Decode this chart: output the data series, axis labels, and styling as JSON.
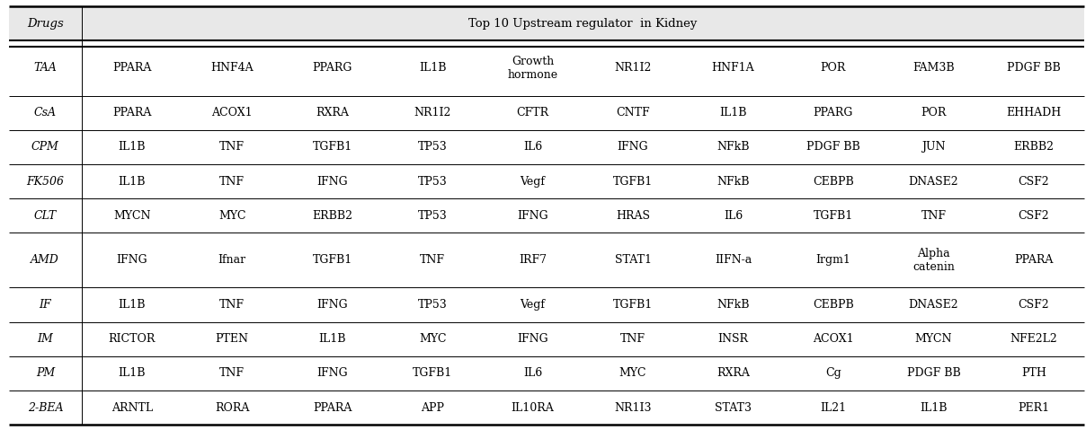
{
  "title": "Top 10 Upstream regulator  in Kidney",
  "col_header": "Drugs",
  "rows": [
    {
      "drug": "TAA",
      "regulators": [
        "PPARA",
        "HNF4A",
        "PPARG",
        "IL1B",
        "Growth\nhormone",
        "NR1I2",
        "HNF1A",
        "POR",
        "FAM3B",
        "PDGF BB"
      ]
    },
    {
      "drug": "CsA",
      "regulators": [
        "PPARA",
        "ACOX1",
        "RXRA",
        "NR1I2",
        "CFTR",
        "CNTF",
        "IL1B",
        "PPARG",
        "POR",
        "EHHADH"
      ]
    },
    {
      "drug": "CPM",
      "regulators": [
        "IL1B",
        "TNF",
        "TGFB1",
        "TP53",
        "IL6",
        "IFNG",
        "NFkB",
        "PDGF BB",
        "JUN",
        "ERBB2"
      ]
    },
    {
      "drug": "FK506",
      "regulators": [
        "IL1B",
        "TNF",
        "IFNG",
        "TP53",
        "Vegf",
        "TGFB1",
        "NFkB",
        "CEBPB",
        "DNASE2",
        "CSF2"
      ]
    },
    {
      "drug": "CLT",
      "regulators": [
        "MYCN",
        "MYC",
        "ERBB2",
        "TP53",
        "IFNG",
        "HRAS",
        "IL6",
        "TGFB1",
        "TNF",
        "CSF2"
      ]
    },
    {
      "drug": "AMD",
      "regulators": [
        "IFNG",
        "Ifnar",
        "TGFB1",
        "TNF",
        "IRF7",
        "STAT1",
        "IIFN-a",
        "Irgm1",
        "Alpha\ncatenin",
        "PPARA"
      ]
    },
    {
      "drug": "IF",
      "regulators": [
        "IL1B",
        "TNF",
        "IFNG",
        "TP53",
        "Vegf",
        "TGFB1",
        "NFkB",
        "CEBPB",
        "DNASE2",
        "CSF2"
      ]
    },
    {
      "drug": "IM",
      "regulators": [
        "RICTOR",
        "PTEN",
        "IL1B",
        "MYC",
        "IFNG",
        "TNF",
        "INSR",
        "ACOX1",
        "MYCN",
        "NFE2L2"
      ]
    },
    {
      "drug": "PM",
      "regulators": [
        "IL1B",
        "TNF",
        "IFNG",
        "TGFB1",
        "IL6",
        "MYC",
        "RXRA",
        "Cg",
        "PDGF BB",
        "PTH"
      ]
    },
    {
      "drug": "2-BEA",
      "regulators": [
        "ARNTL",
        "RORA",
        "PPARA",
        "APP",
        "IL10RA",
        "NR1I3",
        "STAT3",
        "IL21",
        "IL1B",
        "PER1"
      ]
    }
  ],
  "background_color": "#ffffff",
  "header_bg_color": "#e8e8e8",
  "border_color": "#000000",
  "text_color": "#000000",
  "font_size": 9.0,
  "header_font_size": 9.5,
  "fig_width": 12.08,
  "fig_height": 4.79,
  "dpi": 100
}
